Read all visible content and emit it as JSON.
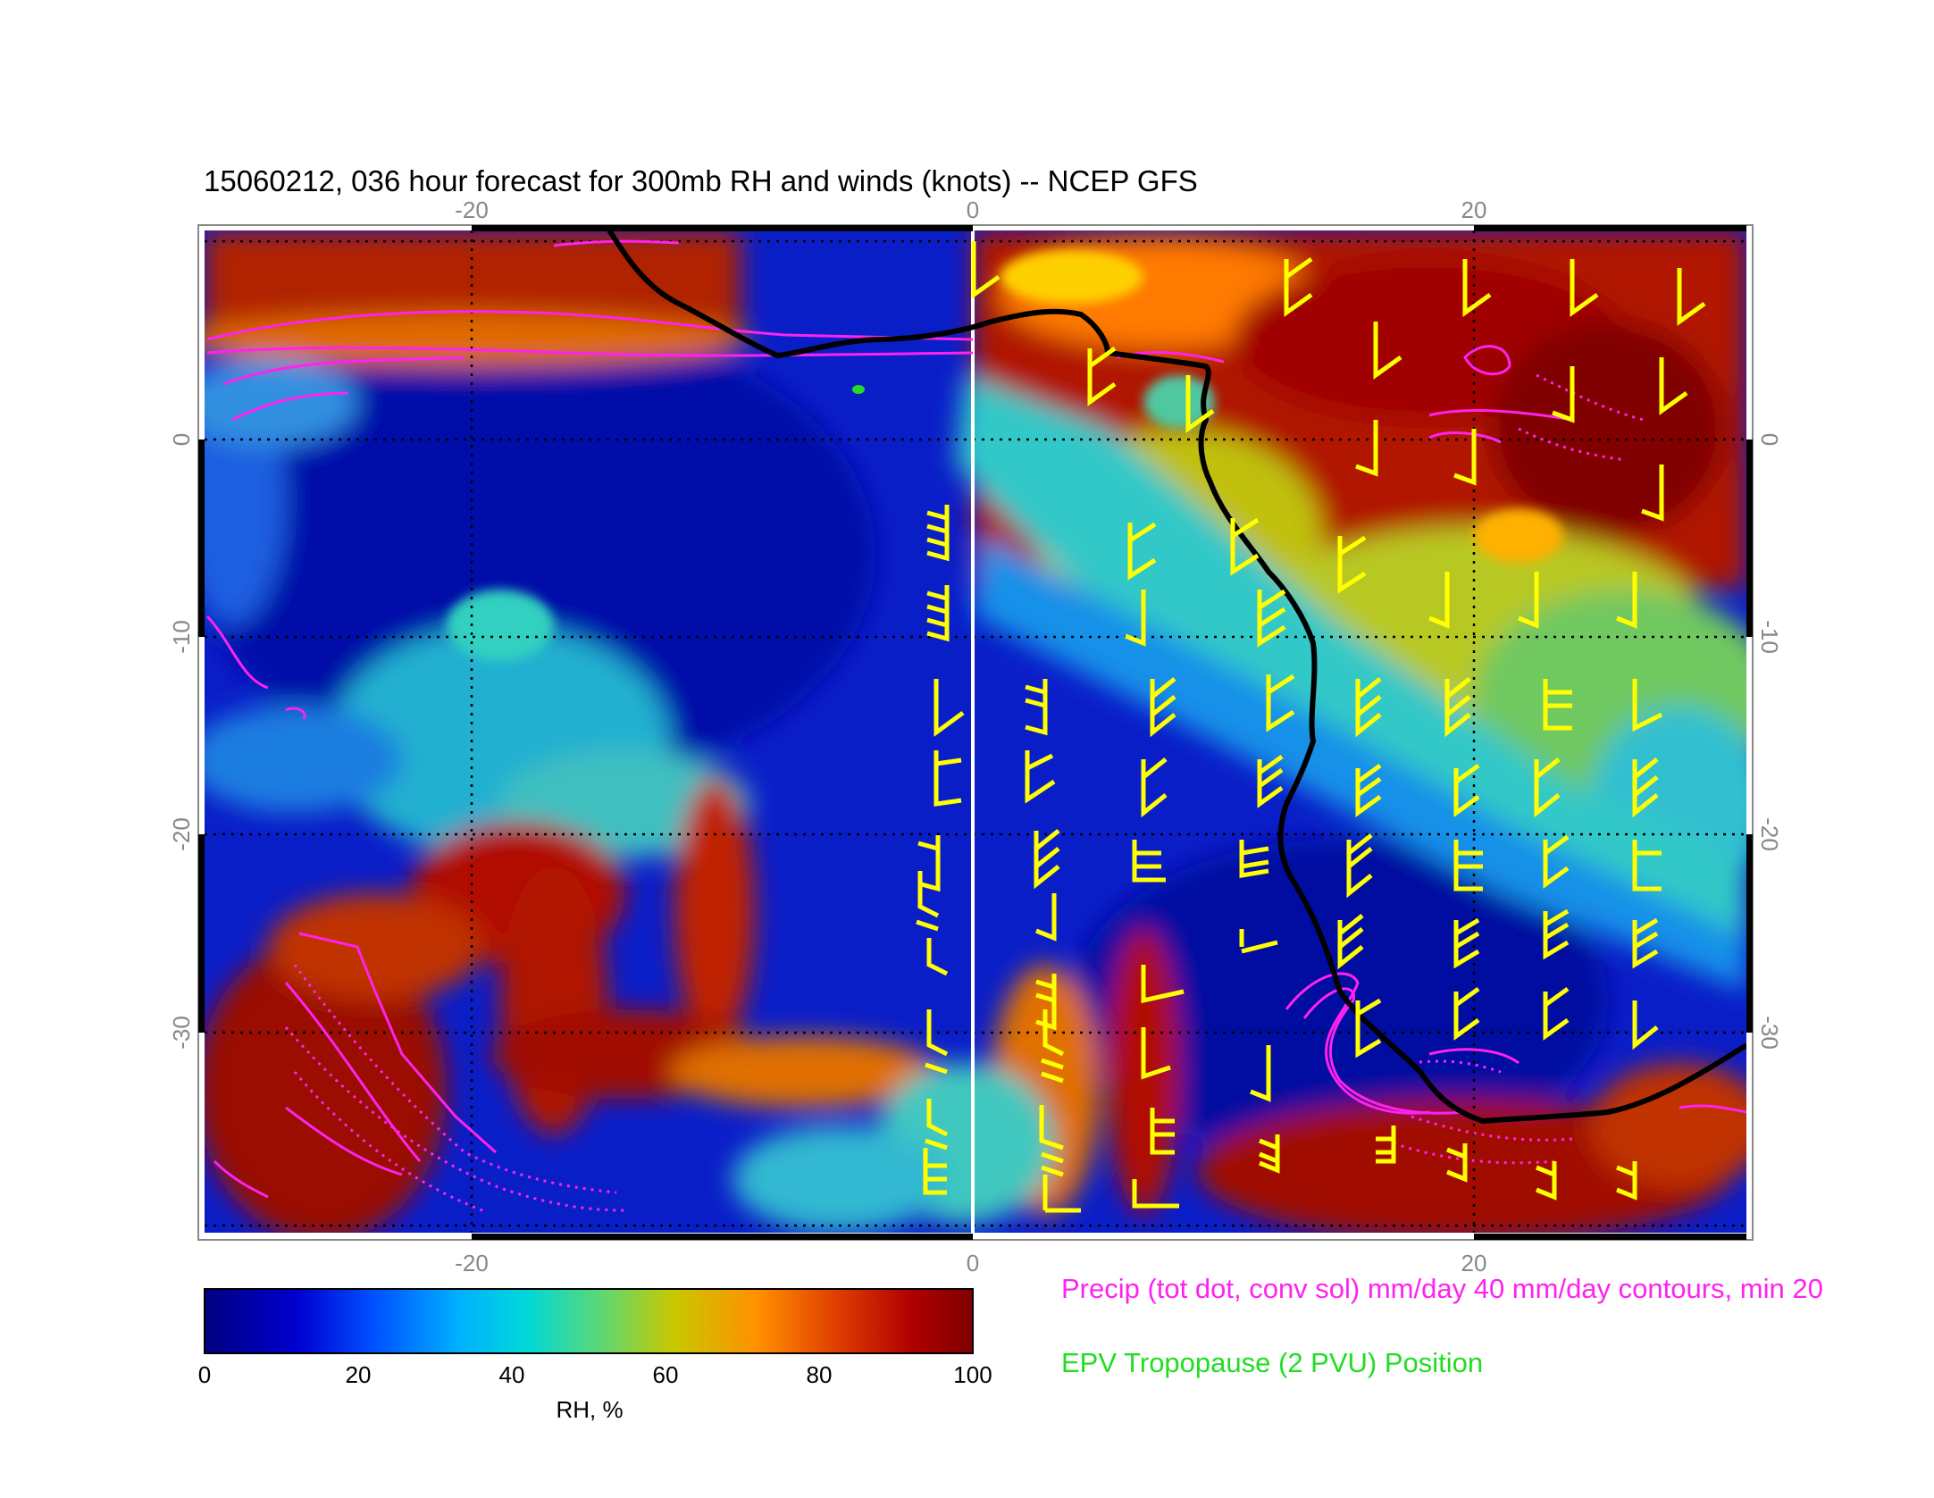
{
  "title": "15060212, 036 hour forecast for 300mb RH and winds (knots) -- NCEP GFS",
  "map": {
    "longitude_ticks": [
      "-20",
      "0",
      "20"
    ],
    "latitude_ticks": [
      "0",
      "-10",
      "-20",
      "-30"
    ],
    "gridlines": "dotted",
    "colors": {
      "precip_contours": "#ff22ee",
      "wind_barbs": "#ffff00",
      "tropopause_line": "#000000",
      "zero_meridian": "#ffffff",
      "epv_marker": "#22dd22"
    }
  },
  "colorbar": {
    "ticks": [
      "0",
      "20",
      "40",
      "60",
      "80",
      "100"
    ],
    "label": "RH, %",
    "colormap": [
      "#000080",
      "#0000d0",
      "#0050ff",
      "#00b0ff",
      "#00d8d8",
      "#60d870",
      "#c8c800",
      "#ff9000",
      "#e04000",
      "#b00000",
      "#800000"
    ]
  },
  "legend": {
    "precip": "Precip (tot dot, conv sol) mm/day 40 mm/day contours, min 20",
    "epv": "EPV Tropopause (2 PVU) Position"
  }
}
